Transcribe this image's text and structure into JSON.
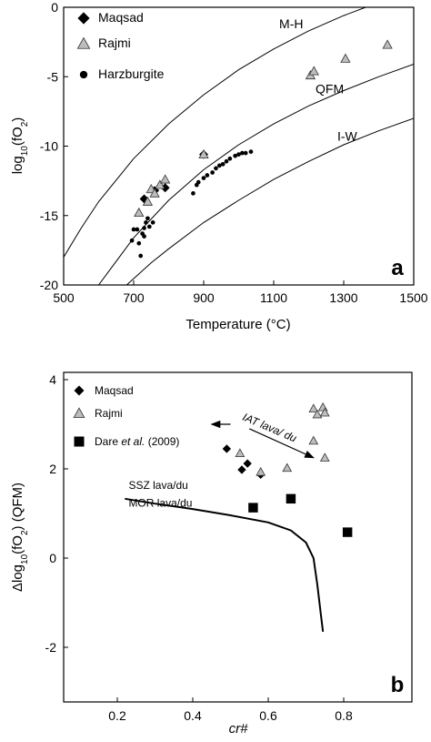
{
  "chart_data": [
    {
      "panel": "a",
      "type": "scatter",
      "xlabel": "Temperature (°C)",
      "ylabel": "log10(fO2)",
      "xlim": [
        500,
        1500
      ],
      "ylim": [
        -20,
        0
      ],
      "xticks": [
        500,
        700,
        900,
        1100,
        1300,
        1500
      ],
      "yticks": [
        0,
        -5,
        -10,
        -15,
        -20
      ],
      "legend": [
        "Maqsad",
        "Rajmi",
        "Harzburgite"
      ],
      "legend_position": "top-left",
      "buffers": [
        {
          "name": "M-H",
          "points": [
            [
              500,
              -18.0
            ],
            [
              550,
              -15.9
            ],
            [
              600,
              -14.0
            ],
            [
              700,
              -10.9
            ],
            [
              800,
              -8.4
            ],
            [
              900,
              -6.3
            ],
            [
              1000,
              -4.5
            ],
            [
              1100,
              -3.0
            ],
            [
              1200,
              -1.7
            ],
            [
              1300,
              -0.6
            ],
            [
              1500,
              1.3
            ]
          ]
        },
        {
          "name": "QFM",
          "points": [
            [
              600,
              -20.0
            ],
            [
              700,
              -16.6
            ],
            [
              800,
              -13.9
            ],
            [
              900,
              -11.7
            ],
            [
              1000,
              -9.9
            ],
            [
              1100,
              -8.4
            ],
            [
              1200,
              -7.1
            ],
            [
              1300,
              -6.0
            ],
            [
              1400,
              -5.0
            ],
            [
              1500,
              -4.1
            ]
          ]
        },
        {
          "name": "I-W",
          "points": [
            [
              680,
              -20.0
            ],
            [
              750,
              -18.4
            ],
            [
              800,
              -17.4
            ],
            [
              900,
              -15.5
            ],
            [
              1000,
              -13.9
            ],
            [
              1100,
              -12.4
            ],
            [
              1200,
              -11.1
            ],
            [
              1300,
              -9.9
            ],
            [
              1400,
              -8.9
            ],
            [
              1500,
              -8.0
            ]
          ]
        }
      ],
      "series": [
        {
          "name": "Maqsad",
          "marker": "diamond",
          "points": [
            [
              730,
              -13.8
            ],
            [
              760,
              -13.2
            ],
            [
              790,
              -13.0
            ],
            [
              900,
              -10.6
            ]
          ]
        },
        {
          "name": "Rajmi",
          "marker": "triangle",
          "points": [
            [
              715,
              -14.8
            ],
            [
              740,
              -14.0
            ],
            [
              750,
              -13.1
            ],
            [
              760,
              -13.4
            ],
            [
              775,
              -12.8
            ],
            [
              790,
              -12.4
            ],
            [
              900,
              -10.6
            ],
            [
              1205,
              -4.9
            ],
            [
              1215,
              -4.6
            ],
            [
              1305,
              -3.7
            ],
            [
              1425,
              -2.7
            ]
          ]
        },
        {
          "name": "Harzburgite",
          "marker": "circle",
          "points": [
            [
              695,
              -16.8
            ],
            [
              700,
              -16.0
            ],
            [
              710,
              -16.0
            ],
            [
              715,
              -17.0
            ],
            [
              720,
              -17.9
            ],
            [
              725,
              -16.3
            ],
            [
              730,
              -15.9
            ],
            [
              730,
              -16.5
            ],
            [
              735,
              -15.5
            ],
            [
              740,
              -15.2
            ],
            [
              745,
              -15.8
            ],
            [
              755,
              -15.5
            ],
            [
              870,
              -13.4
            ],
            [
              880,
              -12.8
            ],
            [
              885,
              -12.6
            ],
            [
              900,
              -12.3
            ],
            [
              910,
              -12.1
            ],
            [
              925,
              -11.9
            ],
            [
              935,
              -11.6
            ],
            [
              945,
              -11.4
            ],
            [
              955,
              -11.3
            ],
            [
              965,
              -11.1
            ],
            [
              975,
              -10.9
            ],
            [
              990,
              -10.7
            ],
            [
              1000,
              -10.6
            ],
            [
              1010,
              -10.5
            ],
            [
              1020,
              -10.5
            ],
            [
              1035,
              -10.4
            ]
          ]
        }
      ],
      "panel_letter": "a"
    },
    {
      "panel": "b",
      "type": "scatter",
      "xlabel": "cr#",
      "ylabel": "Δlog10(fO2) (QFM)",
      "xlim": [
        0,
        1.0
      ],
      "ylim": [
        -3,
        4
      ],
      "xticks": [
        0.2,
        0.4,
        0.6,
        0.8
      ],
      "yticks": [
        4,
        2,
        0,
        -2
      ],
      "legend": [
        "Maqsad",
        "Rajmi",
        "Dare et al. (2009)"
      ],
      "legend_position": "top-left",
      "boundary": {
        "label_above": "SSZ lava/du",
        "label_below": "MOR lava/du",
        "points": [
          [
            0.22,
            1.33
          ],
          [
            0.3,
            1.22
          ],
          [
            0.4,
            1.1
          ],
          [
            0.5,
            0.96
          ],
          [
            0.6,
            0.8
          ],
          [
            0.66,
            0.62
          ],
          [
            0.7,
            0.35
          ],
          [
            0.72,
            0.0
          ],
          [
            0.73,
            -0.6
          ],
          [
            0.74,
            -1.3
          ],
          [
            0.745,
            -1.65
          ]
        ]
      },
      "annotation": {
        "text": "IAT lava/ du",
        "arrow_from": [
          0.72,
          2.25
        ],
        "arrow_to": [
          0.45,
          3.0
        ]
      },
      "series": [
        {
          "name": "Maqsad",
          "marker": "diamond",
          "points": [
            [
              0.49,
              2.45
            ],
            [
              0.53,
              1.98
            ],
            [
              0.545,
              2.12
            ],
            [
              0.58,
              1.87
            ]
          ]
        },
        {
          "name": "Rajmi",
          "marker": "triangle",
          "points": [
            [
              0.525,
              2.35
            ],
            [
              0.58,
              1.93
            ],
            [
              0.65,
              2.02
            ],
            [
              0.72,
              3.35
            ],
            [
              0.73,
              3.22
            ],
            [
              0.745,
              3.38
            ],
            [
              0.75,
              3.26
            ],
            [
              0.72,
              2.63
            ],
            [
              0.75,
              2.25
            ]
          ]
        },
        {
          "name": "Dare et al. (2009)",
          "marker": "square",
          "points": [
            [
              0.56,
              1.13
            ],
            [
              0.66,
              1.33
            ],
            [
              0.81,
              0.58
            ]
          ]
        }
      ],
      "panel_letter": "b"
    }
  ]
}
